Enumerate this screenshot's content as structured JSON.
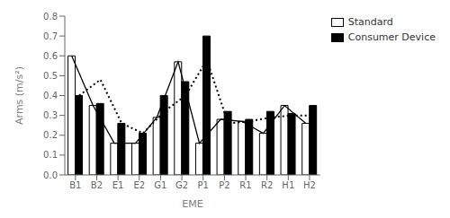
{
  "chart_data": {
    "type": "bar",
    "categories": [
      "B1",
      "B2",
      "E1",
      "E2",
      "G1",
      "G2",
      "P1",
      "P2",
      "R1",
      "R2",
      "H1",
      "H2"
    ],
    "series": [
      {
        "name": "Standard",
        "color": "white",
        "values": [
          0.6,
          0.35,
          0.16,
          0.16,
          0.29,
          0.57,
          0.16,
          0.28,
          0.27,
          0.21,
          0.35,
          0.26
        ]
      },
      {
        "name": "Consumer Device",
        "color": "black",
        "values": [
          0.4,
          0.36,
          0.26,
          0.21,
          0.4,
          0.47,
          0.7,
          0.32,
          0.28,
          0.32,
          0.31,
          0.35
        ]
      },
      {
        "type": "line",
        "color": "black",
        "line_style": "solid",
        "values": [
          0.6,
          0.35,
          0.16,
          0.16,
          0.29,
          0.57,
          0.16,
          0.28,
          0.27,
          0.21,
          0.35,
          0.26
        ]
      },
      {
        "type": "line",
        "color": "black",
        "line_style": "dotted",
        "values": [
          0.4,
          0.48,
          0.26,
          0.21,
          0.32,
          0.4,
          0.58,
          0.26,
          0.27,
          0.29,
          0.3,
          0.3
        ]
      }
    ],
    "xlabel": "EME",
    "ylabel": "Arms (m/s²)",
    "ylim": [
      0,
      0.8
    ],
    "yticks": [
      {
        "value": 0,
        "label": "0.0"
      },
      0.1,
      0.2,
      0.3,
      0.4,
      0.5,
      0.6,
      0.7,
      0.8
    ],
    "legend": "right"
  }
}
